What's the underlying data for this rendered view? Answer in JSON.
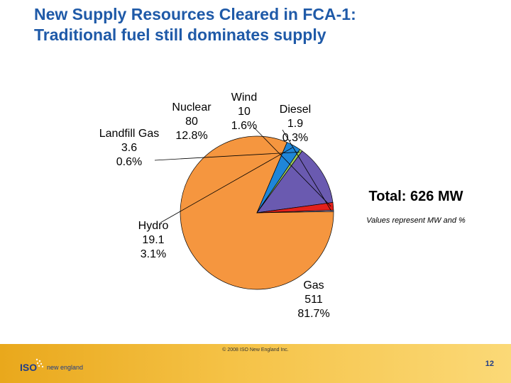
{
  "page": {
    "title_line1": "New Supply Resources Cleared in FCA-1:",
    "title_line2": "Traditional fuel still dominates supply",
    "total_label": "Total: 626 MW",
    "values_note": "Values represent MW and %",
    "copyright": "© 2008 ISO New England Inc.",
    "page_number": "12",
    "logo_iso": "ISO",
    "logo_text": "new england"
  },
  "colors": {
    "title": "#1f5aa8",
    "footer": "#f2b731"
  },
  "chart_data": {
    "type": "pie",
    "title": "",
    "unit": "MW",
    "total": 626,
    "slices": [
      {
        "name": "Diesel",
        "value": 1.9,
        "percent": "0.3%",
        "color": "#a8a2d0"
      },
      {
        "name": "Gas",
        "value": 511,
        "percent": "81.7%",
        "color": "#f5963f"
      },
      {
        "name": "Hydro",
        "value": 19.1,
        "percent": "3.1%",
        "color": "#1f86d8"
      },
      {
        "name": "Landfill Gas",
        "value": 3.6,
        "percent": "0.6%",
        "color": "#9ccc5a"
      },
      {
        "name": "Nuclear",
        "value": 80,
        "percent": "12.8%",
        "color": "#6a5ab0"
      },
      {
        "name": "Wind",
        "value": 10,
        "percent": "1.6%",
        "color": "#e3201b"
      }
    ]
  }
}
